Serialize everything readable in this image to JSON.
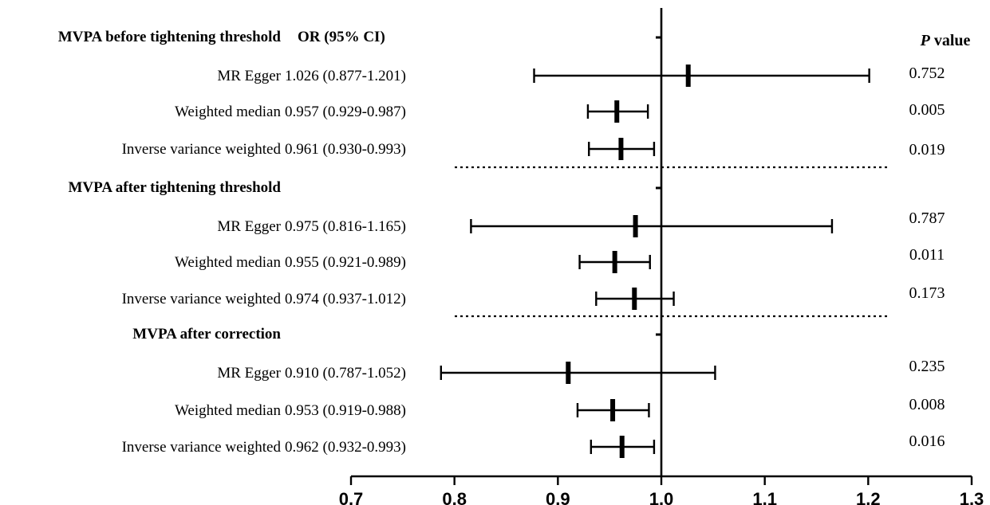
{
  "chart_data": {
    "type": "forest",
    "or_header": "OR (95% CI)",
    "p_header": {
      "p": "P",
      "rest": "value"
    },
    "x_ticks": [
      "0.7",
      "0.8",
      "0.9",
      "1.0",
      "1.1",
      "1.2",
      "1.3"
    ],
    "xlim": [
      0.7,
      1.3
    ],
    "reference_line": 1.0,
    "groups": [
      {
        "title": "MVPA before tightening threshold",
        "rows": [
          {
            "method": "MR Egger",
            "or": 1.026,
            "lo": 0.877,
            "hi": 1.201,
            "ci_text": "1.026 (0.877-1.201)",
            "p_text": "0.752"
          },
          {
            "method": "Weighted median",
            "or": 0.957,
            "lo": 0.929,
            "hi": 0.987,
            "ci_text": "0.957 (0.929-0.987)",
            "p_text": "0.005"
          },
          {
            "method": "Inverse variance weighted",
            "or": 0.961,
            "lo": 0.93,
            "hi": 0.993,
            "ci_text": "0.961 (0.930-0.993)",
            "p_text": "0.019"
          }
        ]
      },
      {
        "title": "MVPA after tightening threshold",
        "rows": [
          {
            "method": "MR Egger",
            "or": 0.975,
            "lo": 0.816,
            "hi": 1.165,
            "ci_text": "0.975 (0.816-1.165)",
            "p_text": "0.787"
          },
          {
            "method": "Weighted median",
            "or": 0.955,
            "lo": 0.921,
            "hi": 0.989,
            "ci_text": "0.955 (0.921-0.989)",
            "p_text": "0.011"
          },
          {
            "method": "Inverse variance weighted",
            "or": 0.974,
            "lo": 0.937,
            "hi": 1.012,
            "ci_text": "0.974 (0.937-1.012)",
            "p_text": "0.173"
          }
        ]
      },
      {
        "title": "MVPA after correction",
        "rows": [
          {
            "method": "MR Egger",
            "or": 0.91,
            "lo": 0.787,
            "hi": 1.052,
            "ci_text": "0.910 (0.787-1.052)",
            "p_text": "0.235"
          },
          {
            "method": "Weighted median",
            "or": 0.953,
            "lo": 0.919,
            "hi": 0.988,
            "ci_text": "0.953 (0.919-0.988)",
            "p_text": "0.008"
          },
          {
            "method": "Inverse variance weighted",
            "or": 0.962,
            "lo": 0.932,
            "hi": 0.993,
            "ci_text": "0.962 (0.932-0.993)",
            "p_text": "0.016"
          }
        ]
      }
    ]
  }
}
